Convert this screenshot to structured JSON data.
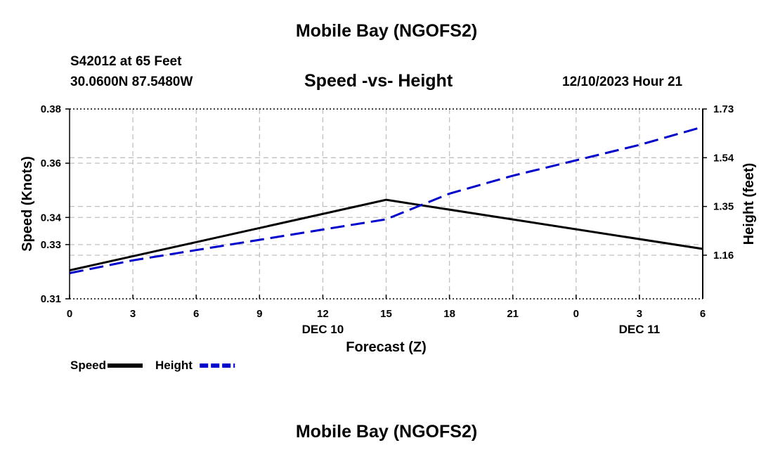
{
  "header": {
    "title": "Mobile Bay (NGOFS2)",
    "station": "S42012 at 65 Feet",
    "coords": "30.0600N  87.5480W",
    "subtitle": "Speed -vs- Height",
    "datetime": "12/10/2023 Hour 21"
  },
  "footer": {
    "title": "Mobile Bay (NGOFS2)"
  },
  "chart_data": {
    "type": "line",
    "title": "Speed -vs- Height",
    "xlabel": "Forecast (Z)",
    "ylabel": "Speed (Knots)",
    "y2label": "Height (feet)",
    "x": [
      0,
      3,
      6,
      9,
      12,
      15,
      18,
      21,
      24,
      27,
      30
    ],
    "x_tick_labels": [
      "0",
      "3",
      "6",
      "9",
      "12",
      "15",
      "18",
      "21",
      "0",
      "3",
      "6"
    ],
    "date_labels": [
      {
        "x": 12,
        "label": "DEC 10"
      },
      {
        "x": 27,
        "label": "DEC 11"
      }
    ],
    "xlim": [
      0,
      30
    ],
    "ylim": [
      0.31,
      0.38
    ],
    "y_tick_labels": [
      "0.31",
      "0.33",
      "0.34",
      "0.36",
      "0.38"
    ],
    "y2lim": [
      0.99,
      1.73
    ],
    "y2_tick_labels": [
      "1.16",
      "1.35",
      "1.54",
      "1.73"
    ],
    "grid": true,
    "series": [
      {
        "name": "Speed",
        "axis": "left",
        "color": "#000000",
        "style": "solid",
        "points": [
          [
            0,
            0.3205
          ],
          [
            15,
            0.3465
          ],
          [
            30,
            0.3284
          ]
        ]
      },
      {
        "name": "Height",
        "axis": "right",
        "color": "#0000cc",
        "style": "dashed",
        "points": [
          [
            0,
            1.09
          ],
          [
            3,
            1.14
          ],
          [
            6,
            1.18
          ],
          [
            9,
            1.22
          ],
          [
            12,
            1.26
          ],
          [
            15,
            1.3
          ],
          [
            18,
            1.4
          ],
          [
            21,
            1.47
          ],
          [
            24,
            1.53
          ],
          [
            27,
            1.59
          ],
          [
            30,
            1.66
          ]
        ]
      }
    ],
    "legend": [
      {
        "label": "Speed",
        "color": "#000000",
        "style": "solid"
      },
      {
        "label": "Height",
        "color": "#0000cc",
        "style": "dashed"
      }
    ],
    "legend_position": "bottom-left"
  }
}
